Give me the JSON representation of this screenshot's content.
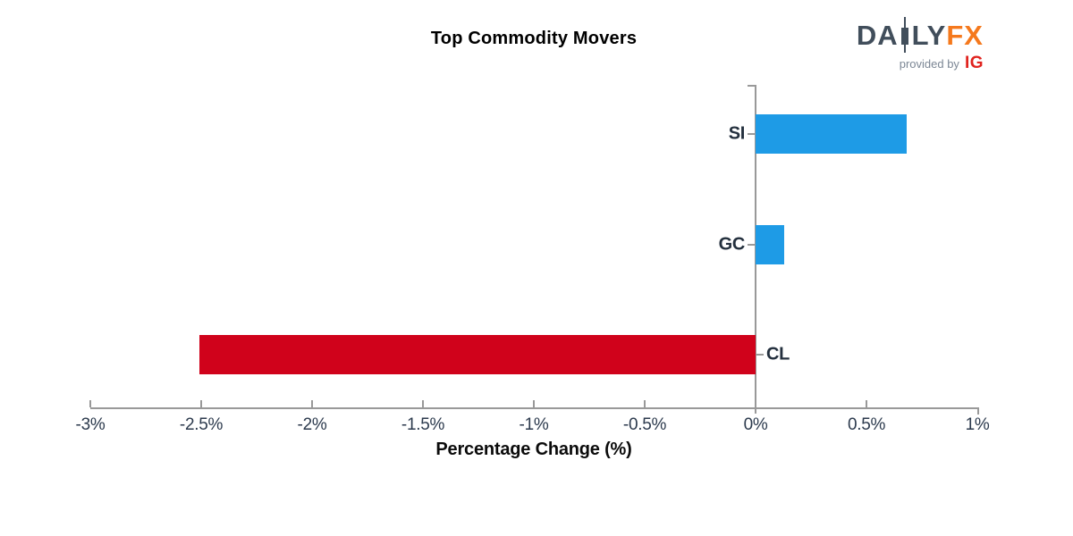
{
  "header": {
    "logo": {
      "part_daily_left": "DA",
      "part_daily_right": "LY",
      "part_fx": "FX",
      "tagline": "provided by",
      "ig": "IG"
    }
  },
  "chart_data": {
    "type": "bar",
    "orientation": "horizontal",
    "title": "Top Commodity Movers",
    "xlabel": "Percentage Change (%)",
    "categories": [
      "SI",
      "GC",
      "CL"
    ],
    "values": [
      0.68,
      0.13,
      -2.51
    ],
    "xlim": [
      -3,
      1
    ],
    "xticks": [
      -3,
      -2.5,
      -2,
      -1.5,
      -1,
      -0.5,
      0,
      0.5,
      1
    ],
    "xtick_labels": [
      "-3%",
      "-2.5%",
      "-2%",
      "-1.5%",
      "-1%",
      "-0.5%",
      "0%",
      "0.5%",
      "1%"
    ],
    "grid": false,
    "legend": false,
    "colors": {
      "positive_bar": "#1E9BE6",
      "negative_bar": "#D0021B",
      "axis": "#999999",
      "tick_label": "#2C3A4D",
      "category_label": "#24303E"
    }
  }
}
